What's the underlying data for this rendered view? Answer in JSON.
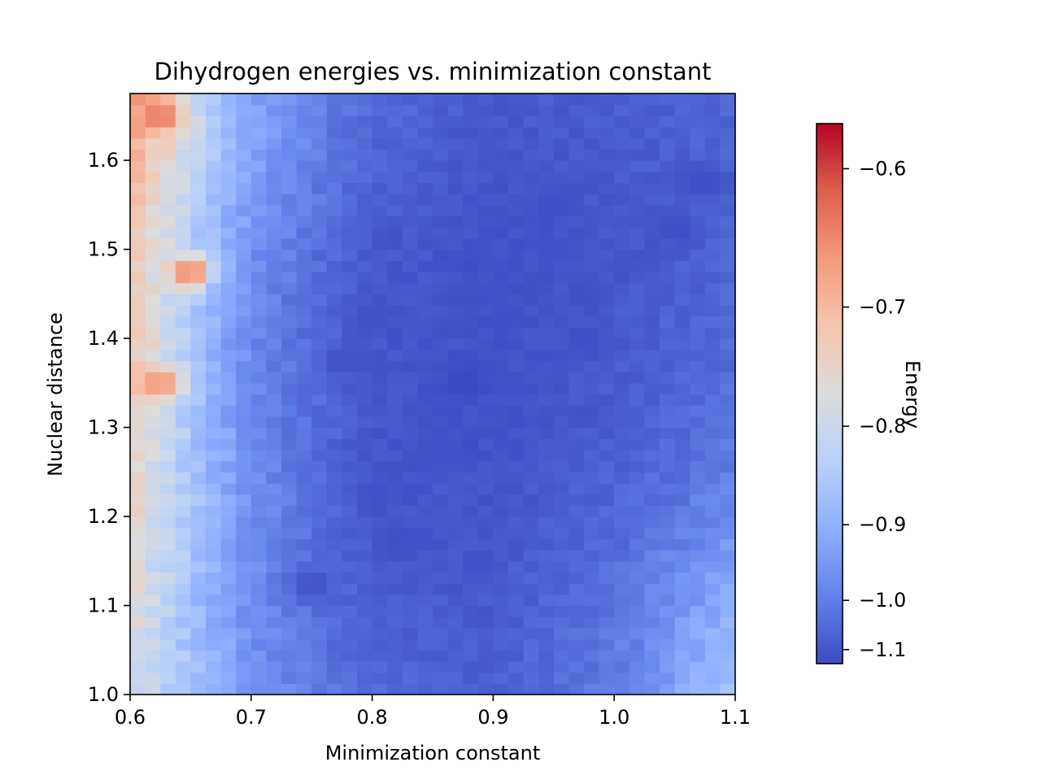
{
  "chart_data": {
    "type": "heatmap",
    "title": "Dihydrogen energies vs. minimization constant",
    "xlabel": "Minimization constant",
    "ylabel": "Nuclear distance",
    "colorbar_label": "Energy",
    "colormap": "coolwarm",
    "xlim": [
      0.6,
      1.1
    ],
    "ylim": [
      1.0,
      1.675
    ],
    "x_ticks": [
      "0.6",
      "0.7",
      "0.8",
      "0.9",
      "1.0",
      "1.1"
    ],
    "y_ticks": [
      "1.0",
      "1.1",
      "1.2",
      "1.3",
      "1.4",
      "1.5",
      "1.6"
    ],
    "colorbar_ticks": [
      "−0.6",
      "−0.7",
      "−0.8",
      "−0.9",
      "−1.0",
      "−1.1"
    ],
    "colorbar_tick_values": [
      -0.6,
      -0.7,
      -0.8,
      -0.9,
      -1.0,
      -1.1
    ],
    "colorbar_range": [
      -1.17,
      -0.57
    ],
    "colorbar_scale": "nonlinear",
    "energy_estimates": {
      "x": [
        0.6,
        0.7,
        0.8,
        0.9,
        1.0,
        1.1
      ],
      "y": [
        1.0,
        1.1,
        1.2,
        1.3,
        1.4,
        1.5,
        1.6,
        1.675
      ],
      "values": [
        [
          -0.78,
          -0.95,
          -1.05,
          -1.07,
          -1.0,
          -0.86
        ],
        [
          -0.76,
          -0.97,
          -1.08,
          -1.09,
          -1.02,
          -0.9
        ],
        [
          -0.75,
          -0.96,
          -1.1,
          -1.1,
          -1.05,
          -0.97
        ],
        [
          -0.74,
          -0.97,
          -1.1,
          -1.12,
          -1.08,
          -1.02
        ],
        [
          -0.72,
          -0.98,
          -1.1,
          -1.12,
          -1.09,
          -1.04
        ],
        [
          -0.72,
          -0.96,
          -1.09,
          -1.12,
          -1.1,
          -1.06
        ],
        [
          -0.68,
          -0.93,
          -1.06,
          -1.1,
          -1.09,
          -1.06
        ],
        [
          -0.66,
          -0.92,
          -1.04,
          -1.09,
          -1.08,
          -1.05
        ]
      ]
    },
    "features": [
      {
        "x": 0.875,
        "y": 1.35,
        "value": -1.17
      },
      {
        "x": 0.65,
        "y": 1.475,
        "value": -0.63
      },
      {
        "x": 0.625,
        "y": 1.35,
        "value": -0.65
      },
      {
        "x": 0.625,
        "y": 1.65,
        "value": -0.63
      },
      {
        "x": 1.05,
        "y": 1.525,
        "value": -1.14
      },
      {
        "x": 1.075,
        "y": 1.575,
        "value": -1.14
      },
      {
        "x": 0.95,
        "y": 1.55,
        "value": -1.13
      },
      {
        "x": 0.975,
        "y": 1.4,
        "value": -1.13
      },
      {
        "x": 0.825,
        "y": 1.175,
        "value": -1.13
      },
      {
        "x": 0.8,
        "y": 1.225,
        "value": -1.12
      },
      {
        "x": 0.775,
        "y": 1.375,
        "value": -1.12
      },
      {
        "x": 0.8,
        "y": 1.425,
        "value": -1.12
      },
      {
        "x": 0.75,
        "y": 1.125,
        "value": -1.12
      },
      {
        "x": 0.85,
        "y": 1.275,
        "value": -1.12
      },
      {
        "x": 0.9,
        "y": 1.45,
        "value": -1.12
      },
      {
        "x": 0.95,
        "y": 1.5,
        "value": -1.12
      }
    ]
  }
}
